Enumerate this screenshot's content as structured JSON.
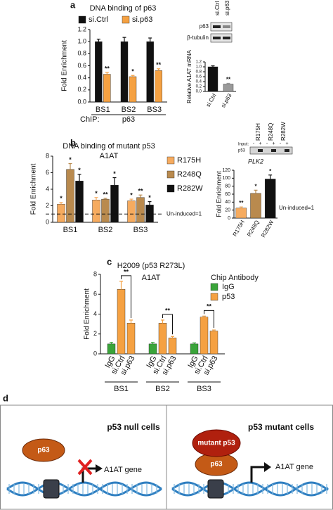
{
  "panels": [
    "a",
    "b",
    "c",
    "d"
  ],
  "chart_data": [
    {
      "type": "bar",
      "title": "DNA binding of p63",
      "ylabel": "Fold Enrichment",
      "xlabel_prefix": "ChIP:",
      "xlabel": "p63",
      "categories": [
        "BS1",
        "BS2",
        "BS3"
      ],
      "series": [
        {
          "name": "si.Ctrl",
          "color": "#111111",
          "values": [
            1.0,
            1.0,
            1.0
          ],
          "errors": [
            0.04,
            0.07,
            0.06
          ]
        },
        {
          "name": "si.p63",
          "color": "#f5a142",
          "values": [
            0.46,
            0.42,
            0.52
          ],
          "errors": [
            0.03,
            0.02,
            0.03
          ],
          "significance": [
            "**",
            "*",
            "**"
          ]
        }
      ],
      "ylim": [
        0,
        1.2
      ],
      "yticks": [
        {
          "value": 0,
          "label": "0.0"
        },
        {
          "value": 0.2,
          "label": "0.2"
        },
        {
          "value": 0.4,
          "label": "0.4"
        },
        {
          "value": 0.6,
          "label": "0.6"
        },
        {
          "value": 0.8,
          "label": "0.8"
        },
        {
          "value": 1,
          "label": "1.0"
        },
        {
          "value": 1.2,
          "label": "1.2"
        }
      ]
    },
    {
      "type": "simplebar",
      "ylabel": "Relative A1AT mRNA",
      "categories": [
        "si.Ctrl",
        "si.p63"
      ],
      "values": [
        1.0,
        0.3
      ],
      "errors": [
        0.04,
        0.03
      ],
      "colors": [
        "#111111",
        "#9a9a9a"
      ],
      "significance": [
        null,
        "**"
      ],
      "ylim": [
        0,
        1.2
      ],
      "yticks": [
        {
          "value": 0,
          "label": "0.0"
        },
        {
          "value": 0.2,
          "label": "0.2"
        },
        {
          "value": 0.4,
          "label": "0.4"
        },
        {
          "value": 0.6,
          "label": "0.6"
        },
        {
          "value": 0.8,
          "label": "0.8"
        },
        {
          "value": 1,
          "label": "1.0"
        },
        {
          "value": 1.2,
          "label": "1.2"
        }
      ]
    },
    {
      "type": "bar",
      "title": "DNA binding of mutant p53",
      "subtitle": "A1AT",
      "ylabel": "Fold Enrichment",
      "categories": [
        "BS1",
        "BS2",
        "BS3"
      ],
      "series": [
        {
          "name": "R175H",
          "color": "#f6ab5f",
          "values": [
            2.2,
            2.7,
            2.6
          ],
          "errors": [
            0.2,
            0.3,
            0.2
          ],
          "significance": [
            "*",
            "*",
            "*"
          ]
        },
        {
          "name": "R248Q",
          "color": "#b98a4e",
          "values": [
            6.4,
            2.8,
            3.0
          ],
          "errors": [
            0.7,
            0.1,
            0.3
          ],
          "significance": [
            "*",
            "**",
            "**"
          ]
        },
        {
          "name": "R282W",
          "color": "#111111",
          "values": [
            5.0,
            4.5,
            2.1
          ],
          "errors": [
            0.8,
            0.9,
            0.4
          ],
          "significance": [
            "*",
            "*",
            "*"
          ]
        }
      ],
      "reference_line": {
        "value": 1,
        "label": "Un-induced=1"
      },
      "ylim": [
        0,
        8
      ],
      "yticks": [
        0,
        2,
        4,
        6,
        8
      ]
    },
    {
      "type": "simplebar",
      "title": "PLK2",
      "ylabel": "Fold Enrichment",
      "categories": [
        "R175H",
        "R248Q",
        "R282W"
      ],
      "values": [
        25,
        62,
        98
      ],
      "errors": [
        3,
        8,
        10
      ],
      "colors": [
        "#f6ab5f",
        "#b98a4e",
        "#111111"
      ],
      "significance": [
        "**",
        "*",
        "*"
      ],
      "reference_label": "Un-induced=1",
      "ylim": [
        0,
        120
      ],
      "yticks": [
        0,
        20,
        40,
        60,
        80,
        100,
        120
      ]
    },
    {
      "type": "nested",
      "title": "H2009 (p53 R273L)",
      "subtitle": "A1AT",
      "ylabel": "Fold Enrichment",
      "legend_title": "Chip Antibody",
      "groups": [
        "BS1",
        "BS2",
        "BS3"
      ],
      "categories": [
        "IgG",
        "si.Ctrl",
        "si.p63"
      ],
      "category_colors": [
        "#3aa43a",
        "#f5a142",
        "#f5a142"
      ],
      "series": [
        {
          "name": "IgG",
          "color": "#3aa43a"
        },
        {
          "name": "p53",
          "color": "#f5a142"
        }
      ],
      "values": [
        [
          1.0,
          6.5,
          3.1
        ],
        [
          1.0,
          3.1,
          1.6
        ],
        [
          1.0,
          3.7,
          2.3
        ]
      ],
      "errors": [
        [
          0.15,
          0.8,
          0.3
        ],
        [
          0.15,
          0.3,
          0.15
        ],
        [
          0.1,
          0.1,
          0.1
        ]
      ],
      "significance": [
        "**",
        "**",
        "**"
      ],
      "ylim": [
        0,
        8
      ],
      "yticks": [
        0,
        2,
        4,
        6,
        8
      ]
    }
  ],
  "blots": {
    "a": {
      "lanes": [
        "si.Ctrl",
        "si.p63"
      ],
      "rows": [
        "p63",
        "β-tubulin"
      ]
    },
    "b": {
      "lanes": [
        "R175H",
        "R248Q",
        "R282W"
      ],
      "input_label": "Input:",
      "row": "p53",
      "signs": [
        "-",
        "+",
        "-",
        "+",
        "-",
        "+"
      ]
    }
  },
  "diagram": {
    "left": {
      "title": "p53 null cells",
      "protein": "p63",
      "gene": "A1AT gene"
    },
    "right": {
      "title": "p53 mutant cells",
      "protein_top": "mutant p53",
      "protein_bottom": "p63",
      "gene": "A1AT gene"
    }
  }
}
